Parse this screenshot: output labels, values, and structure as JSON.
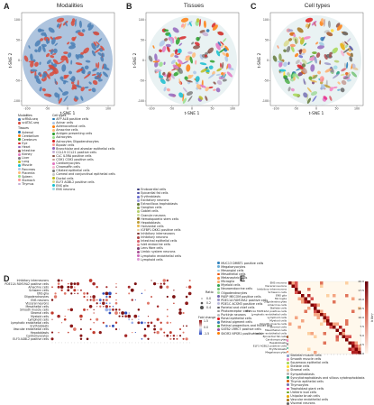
{
  "panels": {
    "A": {
      "letter": "A",
      "title": "Modalities",
      "xlabel": "t-SNE 1",
      "ylabel": "t-SNE 2"
    },
    "B": {
      "letter": "B",
      "title": "Tissues",
      "xlabel": "t-SNE 1",
      "ylabel": "t-SNE 2"
    },
    "C": {
      "letter": "C",
      "title": "Cell types",
      "xlabel": "t-SNE 1",
      "ylabel": "t-SNE 2"
    },
    "D": {
      "letter": "D"
    },
    "E": {
      "letter": "E"
    }
  },
  "tsne_ticks": {
    "x": [
      "-100",
      "-50",
      "0",
      "50",
      "100"
    ],
    "y": [
      "100",
      "50",
      "0",
      "-50",
      "-100"
    ]
  },
  "legend": {
    "modalities_header": "Modalities",
    "modalities": [
      {
        "label": "scRNA-seq",
        "color": "#4a7fb5"
      },
      {
        "label": "scATAC-seq",
        "color": "#d94a3a"
      }
    ],
    "tissues_header": "Tissues",
    "tissues": [
      {
        "label": "Adrenal",
        "color": "#1f77b4"
      },
      {
        "label": "Cerebellum",
        "color": "#ff7f0e"
      },
      {
        "label": "Cerebrum",
        "color": "#2ca02c"
      },
      {
        "label": "Eye",
        "color": "#d62728"
      },
      {
        "label": "Heart",
        "color": "#9467bd"
      },
      {
        "label": "Intestine",
        "color": "#8c564b"
      },
      {
        "label": "Kidney",
        "color": "#e377c2"
      },
      {
        "label": "Liver",
        "color": "#7f7f7f"
      },
      {
        "label": "Lung",
        "color": "#bcbd22"
      },
      {
        "label": "Muscle",
        "color": "#17becf"
      },
      {
        "label": "Pancreas",
        "color": "#aec7e8"
      },
      {
        "label": "Placenta",
        "color": "#ffbb78"
      },
      {
        "label": "Spleen",
        "color": "#98df8a"
      },
      {
        "label": "Stomach",
        "color": "#ff9896"
      },
      {
        "label": "Thymus",
        "color": "#c5b0d5"
      }
    ],
    "celltypes_header": "Cell types",
    "celltypes_col1": [
      {
        "label": "AFP ALB positive cells",
        "color": "#1f77b4"
      },
      {
        "label": "Acinar cells",
        "color": "#aec7e8"
      },
      {
        "label": "Adrenocortical cells",
        "color": "#ff7f0e"
      },
      {
        "label": "Amacrine cells",
        "color": "#ffbb78"
      },
      {
        "label": "Antigen presenting cells",
        "color": "#2ca02c"
      },
      {
        "label": "Astrocytes",
        "color": "#98df8a"
      },
      {
        "label": "Astrocytes Oligodendrocytes",
        "color": "#d62728"
      },
      {
        "label": "Bipolar cells",
        "color": "#ff9896"
      },
      {
        "label": "Bronchiolar and alveolar epithelial cells",
        "color": "#9467bd"
      },
      {
        "label": "CCL19 CCL21 positive cells",
        "color": "#c5b0d5"
      },
      {
        "label": "CLC IL5RA positive cells",
        "color": "#8c564b"
      },
      {
        "label": "CSH1 CSH2 positive cells",
        "color": "#c49c94"
      },
      {
        "label": "Cardiomyocytes",
        "color": "#e377c2"
      },
      {
        "label": "Chromaffin cells",
        "color": "#f7b6d2"
      },
      {
        "label": "Ciliated epithelial cells",
        "color": "#7f7f7f"
      },
      {
        "label": "Corneal and conjunctival epithelial cells",
        "color": "#c7c7c7"
      },
      {
        "label": "Ductal cells",
        "color": "#bcbd22"
      },
      {
        "label": "ELF3 AGBL2 positive cells",
        "color": "#dbdb8d"
      },
      {
        "label": "ENS glia",
        "color": "#17becf"
      },
      {
        "label": "ENS neurons",
        "color": "#9edae5"
      }
    ],
    "celltypes_col2": [
      {
        "label": "Endocardial cells",
        "color": "#393b79"
      },
      {
        "label": "Epicardial fat cells",
        "color": "#5254a3"
      },
      {
        "label": "Erythroblasts",
        "color": "#6b6ecf"
      },
      {
        "label": "Excitatory neurons",
        "color": "#9c9ede"
      },
      {
        "label": "Extravillous trophoblasts",
        "color": "#637939"
      },
      {
        "label": "Ganglion cells",
        "color": "#8ca252"
      },
      {
        "label": "Goblet cells",
        "color": "#b5cf6b"
      },
      {
        "label": "Granule neurons",
        "color": "#cedb9c"
      },
      {
        "label": "Hematopoietic stem cells",
        "color": "#8c6d31"
      },
      {
        "label": "Hepatoblasts",
        "color": "#bd9e39"
      },
      {
        "label": "Horizontal cells",
        "color": "#e7ba52"
      },
      {
        "label": "IGFBP1 DKK1 positive cells",
        "color": "#e7cb94"
      },
      {
        "label": "Inhibitory interneurons",
        "color": "#843c39"
      },
      {
        "label": "Inhibitory neurons",
        "color": "#ad494a"
      },
      {
        "label": "Intestinal epithelial cells",
        "color": "#d6616b"
      },
      {
        "label": "Islet endocrine cells",
        "color": "#e7969c"
      },
      {
        "label": "Lens fibre cells",
        "color": "#7b4173"
      },
      {
        "label": "Limbic system neurons",
        "color": "#a55194"
      },
      {
        "label": "Lymphatic endothelial cells",
        "color": "#ce6dbd"
      },
      {
        "label": "Lymphoid cells",
        "color": "#de9ed6"
      }
    ],
    "celltypes_col3": [
      {
        "label": "MUC13 DMBT1 positive cells",
        "color": "#3182bd"
      },
      {
        "label": "Megakaryocytes",
        "color": "#6baed6"
      },
      {
        "label": "Mesangial cells",
        "color": "#9ecae1"
      },
      {
        "label": "Mesothelial cells",
        "color": "#e6550d"
      },
      {
        "label": "Metanephric cells",
        "color": "#fd8d3c"
      },
      {
        "label": "Microglia",
        "color": "#fdae6b"
      },
      {
        "label": "Myeloid cells",
        "color": "#31a354"
      },
      {
        "label": "Neuroendocrine cells",
        "color": "#74c476"
      },
      {
        "label": "Oligodendrocytes",
        "color": "#a1d99b"
      },
      {
        "label": "PAEP MECOM positive cells",
        "color": "#756bb1"
      },
      {
        "label": "PDE11A FAM19A2 positive cells",
        "color": "#9e9ac8"
      },
      {
        "label": "PDE1C ACSM3 positive cells",
        "color": "#bcbddc"
      },
      {
        "label": "Parietal and chief cells",
        "color": "#636363"
      },
      {
        "label": "Photoreceptor cells",
        "color": "#969696"
      },
      {
        "label": "Purkinje neurons",
        "color": "#bdbdbd"
      },
      {
        "label": "Renal epithelial cells",
        "color": "#e41a1c"
      },
      {
        "label": "Retinal pigment cells",
        "color": "#377eb8"
      },
      {
        "label": "Retinal progenitors and Muller glia",
        "color": "#4daf4a"
      },
      {
        "label": "SATB2 LRRC7 positive cells",
        "color": "#984ea3"
      },
      {
        "label": "SKOR2 NPSR1 positive cells",
        "color": "#ff7f00"
      }
    ],
    "celltypes_col4": [
      {
        "label": "SLC24A4 PEX5L positive cells",
        "color": "#a65628"
      },
      {
        "label": "SLC26A4 PAEP positive cells",
        "color": "#f781bf"
      },
      {
        "label": "STC2 TLX1 positive cells",
        "color": "#999999"
      },
      {
        "label": "Satellite cells",
        "color": "#66c2a5"
      },
      {
        "label": "Schwann cells",
        "color": "#fc8d62"
      },
      {
        "label": "Skeletal muscle cells",
        "color": "#8da0cb"
      },
      {
        "label": "Smooth muscle cells",
        "color": "#e78ac3"
      },
      {
        "label": "Squamous epithelial cells",
        "color": "#a6d854"
      },
      {
        "label": "Stellate cells",
        "color": "#ffd92f"
      },
      {
        "label": "Stromal cells",
        "color": "#e5c494"
      },
      {
        "label": "Sympathoblasts",
        "color": "#b3b3b3"
      },
      {
        "label": "Syncytiotrophoblasts and villous cytotrophoblasts",
        "color": "#1b9e77"
      },
      {
        "label": "Thymic epithelial cells",
        "color": "#d95f02"
      },
      {
        "label": "Thymocytes",
        "color": "#7570b3"
      },
      {
        "label": "Trophoblast giant cells",
        "color": "#e7298a"
      },
      {
        "label": "Ureteric bud cells",
        "color": "#66a61e"
      },
      {
        "label": "Unipolar brush cells",
        "color": "#e6ab02"
      },
      {
        "label": "Vascular endothelial cells",
        "color": "#a6761d"
      },
      {
        "label": "Visceral neurons",
        "color": "#666666"
      }
    ]
  },
  "panel_d": {
    "rows": [
      "Inhibitory interneurons",
      "PDE11A FAM19A2 positive cells",
      "Amacrine cells",
      "Schwann cells",
      "ENS glia",
      "Oligodendrocytes",
      "ENS neurons",
      "Visceral neurons",
      "Mesothelial cells",
      "Smooth muscle cells",
      "Stromal cells",
      "Myeloid cells",
      "Lymphoid cells",
      "Lymphatic endothelial cells",
      "Erythroblasts",
      "Vascular endothelial cells",
      "Hepatoblasts",
      "Cardiomyocytes",
      "ELF3 AGBL2 positive cells"
    ],
    "size_legend_title": "Ratio",
    "size_legend": [
      "0.0",
      "0.2",
      "0.4"
    ],
    "color_legend_title": "Fold change",
    "color_legend_ticks": [
      "1.5",
      "0.0",
      "-1.5"
    ]
  },
  "panel_e": {
    "rows": [
      "ENS neurons",
      "Visceral neurons",
      "Inhibitory interneurons",
      "Schwann cells",
      "ENS glia",
      "Microglia",
      "Oligodendrocytes",
      "Amacrine cells",
      "Stellate cells",
      "PDE11A FAM19A2 positive cells",
      "Lymphatic endothelial cells",
      "Lymphoid cells",
      "Myeloid cells",
      "Smooth muscle cells",
      "Stromal cells",
      "Mesothelial cells",
      "Vascular endothelial cells",
      "Epicardial fat cells",
      "Cardiomyocytes",
      "Hepatoblasts",
      "ELF3 AGBL2 positive cells",
      "Erythroblasts",
      "Megakaryocytes"
    ],
    "colorbar_label": "-Log q",
    "colorbar_ticks": [
      "20.0",
      "17.5",
      "15.0",
      "12.5",
      "10.0",
      "7.5",
      "5.0",
      "2.5",
      "0.0"
    ]
  }
}
